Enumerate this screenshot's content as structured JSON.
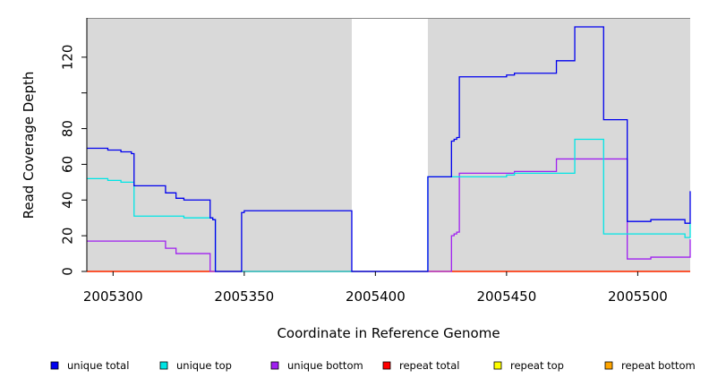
{
  "chart_data": {
    "type": "line",
    "step": true,
    "title": "",
    "xlabel": "Coordinate in Reference Genome",
    "ylabel": "Read Coverage Depth",
    "xlim": [
      2005290,
      2005520
    ],
    "ylim": [
      0,
      142
    ],
    "xticks": [
      2005300,
      2005350,
      2005400,
      2005450,
      2005500
    ],
    "yticks": [
      0,
      20,
      40,
      60,
      80,
      100,
      120
    ],
    "ytick_labels": [
      "0",
      "20",
      "40",
      "60",
      "80",
      "",
      "120"
    ],
    "grid": false,
    "background": "#d9d9d9",
    "shaded_regions": [
      [
        2005290,
        2005391
      ],
      [
        2005420,
        2005520
      ]
    ],
    "legend_position": "bottom",
    "series": [
      {
        "name": "unique total",
        "color": "#0000ee",
        "x": [
          2005290,
          2005298,
          2005303,
          2005307,
          2005308,
          2005320,
          2005324,
          2005327,
          2005337,
          2005338,
          2005339,
          2005349,
          2005350,
          2005391,
          2005420,
          2005429,
          2005430,
          2005431,
          2005432,
          2005450,
          2005453,
          2005469,
          2005476,
          2005487,
          2005496,
          2005505,
          2005518,
          2005520
        ],
        "values": [
          69,
          68,
          67,
          66,
          48,
          44,
          41,
          40,
          30,
          29,
          0,
          33,
          34,
          0,
          53,
          73,
          74,
          75,
          109,
          110,
          111,
          118,
          137,
          85,
          28,
          29,
          27,
          45
        ]
      },
      {
        "name": "unique top",
        "color": "#00e5e5",
        "x": [
          2005290,
          2005298,
          2005303,
          2005308,
          2005327,
          2005337,
          2005338,
          2005339,
          2005349,
          2005391,
          2005420,
          2005432,
          2005450,
          2005453,
          2005476,
          2005487,
          2005518,
          2005520
        ],
        "values": [
          52,
          51,
          50,
          31,
          30,
          30,
          29,
          0,
          0,
          0,
          53,
          53,
          54,
          55,
          74,
          21,
          19,
          27
        ]
      },
      {
        "name": "unique bottom",
        "color": "#a020f0",
        "x": [
          2005290,
          2005320,
          2005324,
          2005337,
          2005391,
          2005420,
          2005429,
          2005430,
          2005431,
          2005432,
          2005450,
          2005453,
          2005469,
          2005496,
          2005505,
          2005520
        ],
        "values": [
          17,
          13,
          10,
          0,
          0,
          0,
          20,
          21,
          22,
          55,
          55,
          56,
          63,
          7,
          8,
          18
        ]
      },
      {
        "name": "repeat total",
        "color": "#ff0000",
        "x": [
          2005290,
          2005520
        ],
        "values": [
          0,
          0
        ]
      },
      {
        "name": "repeat top",
        "color": "#ffff00",
        "x": [
          2005290,
          2005520
        ],
        "values": [
          0,
          0
        ]
      },
      {
        "name": "repeat bottom",
        "color": "#ffa500",
        "x": [
          2005290,
          2005520
        ],
        "values": [
          0,
          0
        ]
      }
    ]
  }
}
